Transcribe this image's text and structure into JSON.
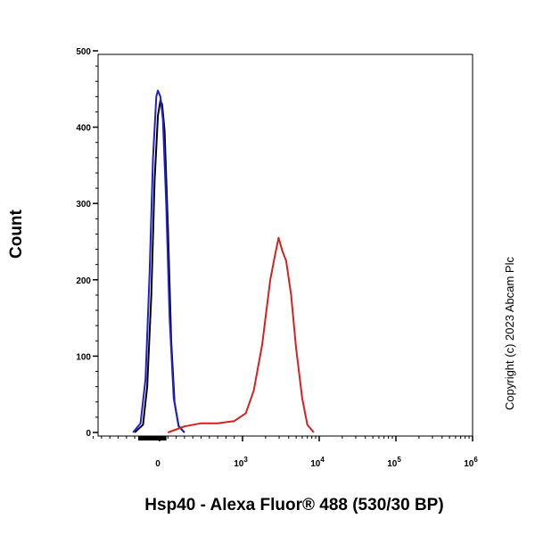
{
  "chart_data": {
    "type": "line",
    "title": "",
    "xlabel": "Hsp40 - Alexa Fluor® 488 (530/30 BP)",
    "ylabel": "Count",
    "ylim": [
      0,
      500
    ],
    "y_ticks": [
      "0",
      "100",
      "200",
      "300",
      "400",
      "500"
    ],
    "x_ticks": [
      {
        "base": "0",
        "exp": ""
      },
      {
        "base": "10",
        "exp": "3"
      },
      {
        "base": "10",
        "exp": "4"
      },
      {
        "base": "10",
        "exp": "5"
      },
      {
        "base": "10",
        "exp": "6"
      }
    ],
    "x_scale": "biexponential (log beyond 10^3)",
    "grid": false,
    "legend": "none",
    "copyright": "Copyright (c) 2023 Abcam Plc",
    "series": [
      {
        "color": "#000000",
        "points": [
          [
            -300,
            0
          ],
          [
            -200,
            10
          ],
          [
            -150,
            60
          ],
          [
            -100,
            180
          ],
          [
            -60,
            330
          ],
          [
            -20,
            415
          ],
          [
            10,
            435
          ],
          [
            30,
            430
          ],
          [
            60,
            395
          ],
          [
            100,
            270
          ],
          [
            140,
            120
          ],
          [
            180,
            40
          ],
          [
            230,
            8
          ],
          [
            300,
            0
          ]
        ]
      },
      {
        "color": "#2020d0",
        "points": [
          [
            -320,
            0
          ],
          [
            -230,
            12
          ],
          [
            -170,
            70
          ],
          [
            -120,
            210
          ],
          [
            -80,
            360
          ],
          [
            -40,
            440
          ],
          [
            -20,
            448
          ],
          [
            10,
            440
          ],
          [
            40,
            410
          ],
          [
            80,
            300
          ],
          [
            120,
            150
          ],
          [
            170,
            45
          ],
          [
            230,
            8
          ],
          [
            300,
            0
          ]
        ]
      },
      {
        "color": "#d82020",
        "points": [
          [
            100,
            0
          ],
          [
            300,
            8
          ],
          [
            500,
            12
          ],
          [
            700,
            12
          ],
          [
            900,
            15
          ],
          [
            1100,
            25
          ],
          [
            1400,
            55
          ],
          [
            1800,
            115
          ],
          [
            2300,
            200
          ],
          [
            2600,
            228
          ],
          [
            2950,
            255
          ],
          [
            3300,
            238
          ],
          [
            3700,
            225
          ],
          [
            4300,
            180
          ],
          [
            5000,
            110
          ],
          [
            6000,
            45
          ],
          [
            7000,
            10
          ],
          [
            8500,
            0
          ]
        ]
      }
    ]
  }
}
